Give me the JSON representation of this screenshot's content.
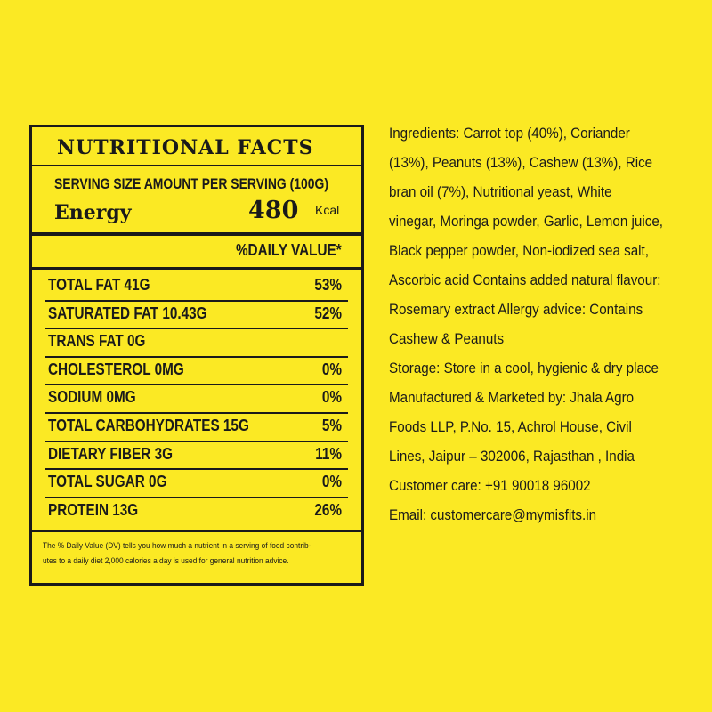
{
  "nutrition": {
    "title": "NUTRITIONAL FACTS",
    "serving": "SERVING SIZE AMOUNT PER SERVING (100G)",
    "energy_label": "Energy",
    "energy_value": "480",
    "energy_unit": "Kcal",
    "daily_value_header": "%DAILY VALUE*",
    "rows": [
      [
        "TOTAL FAT 41G",
        "53%"
      ],
      [
        "SATURATED FAT 10.43G",
        "52%"
      ],
      [
        "TRANS FAT 0G",
        ""
      ],
      [
        "CHOLESTEROL 0MG",
        "0%"
      ],
      [
        "SODIUM 0MG",
        "0%"
      ],
      [
        "TOTAL CARBOHYDRATES 15G",
        "5%"
      ],
      [
        "DIETARY FIBER 3G",
        "11%"
      ],
      [
        "TOTAL SUGAR 0G",
        "0%"
      ],
      [
        "PROTEIN 13G",
        "26%"
      ]
    ],
    "footnote": [
      "The % Daily Value (DV) tells you how much a nutrient in a serving of food contrib-",
      "utes to a daily diet 2,000 calories a day is used for general nutrition advice."
    ]
  },
  "info_lines": [
    "Ingredients: Carrot top (40%), Coriander",
    "(13%), Peanuts (13%), Cashew (13%), Rice",
    "bran oil (7%), Nutritional yeast, White",
    "vinegar, Moringa powder, Garlic, Lemon juice,",
    "Black pepper powder, Non-iodized sea salt,",
    "Ascorbic acid Contains added natural flavour:",
    "Rosemary extract Allergy advice: Contains",
    "Cashew & Peanuts",
    "Storage: Store in a cool, hygienic & dry place",
    "Manufactured & Marketed by: Jhala Agro",
    "Foods LLP, P.No. 15, Achrol House, Civil",
    "Lines, Jaipur – 302006, Rajasthan , India",
    "Customer care: +91 90018 96002",
    "Email: customercare@mymisfits.in"
  ]
}
